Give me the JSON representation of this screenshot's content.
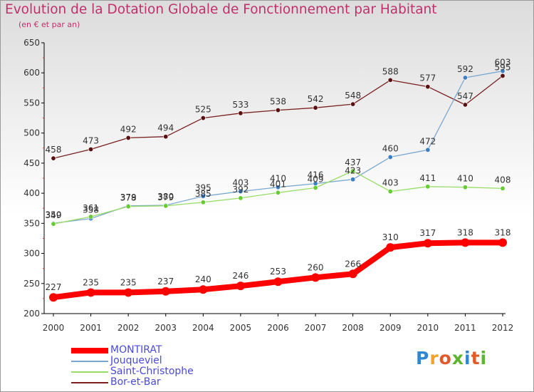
{
  "header": {
    "title": "Evolution de la Dotation Globale de Fonctionnement par Habitant",
    "subtitle": "(en € et par an)"
  },
  "logo": {
    "text": "Proxiti",
    "letters": [
      {
        "char": "P",
        "color": "#2f86d2"
      },
      {
        "char": "r",
        "color": "#f0a22a"
      },
      {
        "char": "o",
        "color": "#e05a2a"
      },
      {
        "char": "x",
        "color": "#5bb531"
      },
      {
        "char": "i",
        "color": "#2f86d2"
      },
      {
        "char": "t",
        "color": "#e05a2a"
      },
      {
        "char": "i",
        "color": "#5bb531"
      }
    ]
  },
  "chart_data": {
    "type": "line",
    "title": "Evolution de la Dotation Globale de Fonctionnement par Habitant",
    "subtitle": "(en € et par an)",
    "x": [
      2000,
      2001,
      2002,
      2003,
      2004,
      2005,
      2006,
      2007,
      2008,
      2009,
      2010,
      2011,
      2012
    ],
    "ylim": [
      200,
      650
    ],
    "yticks": [
      200,
      250,
      300,
      350,
      400,
      450,
      500,
      550,
      600,
      650
    ],
    "grid": false,
    "legend_position": "bottom-left",
    "series": [
      {
        "name": "MONTIRAT",
        "color": "#ff0000",
        "values": [
          227,
          235,
          235,
          237,
          240,
          246,
          253,
          260,
          266,
          310,
          317,
          318,
          318
        ]
      },
      {
        "name": "Jouqueviel",
        "color": "#7aa7d0",
        "values": [
          350,
          358,
          379,
          380,
          395,
          403,
          410,
          416,
          423,
          460,
          472,
          592,
          603
        ]
      },
      {
        "name": "Saint-Christophe",
        "color": "#99dd66",
        "values": [
          349,
          361,
          378,
          379,
          385,
          392,
          401,
          409,
          437,
          403,
          411,
          410,
          408
        ]
      },
      {
        "name": "Bor-et-Bar",
        "color": "#7a2020",
        "values": [
          458,
          473,
          492,
          494,
          525,
          533,
          538,
          542,
          548,
          588,
          577,
          547,
          595
        ]
      }
    ]
  }
}
